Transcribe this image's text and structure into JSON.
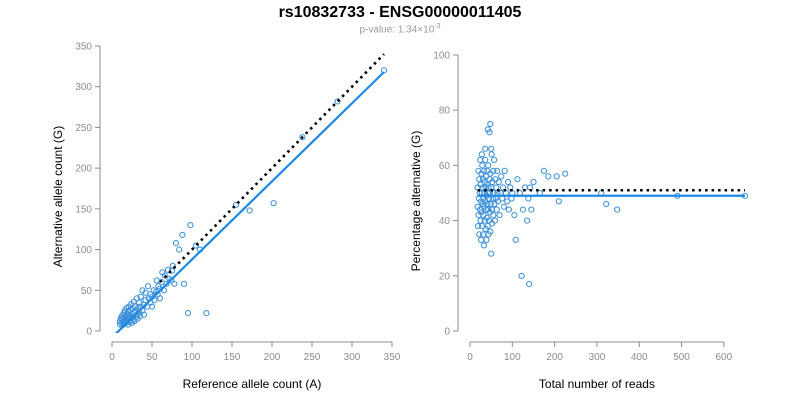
{
  "figure": {
    "title": "rs10832733 - ENSG00000011405",
    "pvalue_prefix": "p-value: 1.34×10",
    "pvalue_exponent": "-3"
  },
  "colors": {
    "points": "#3a8fd8",
    "fit_line": "#1e88e5",
    "reference_line": "#000000",
    "axis": "#8c8c8c"
  },
  "chart_data": [
    {
      "type": "scatter",
      "xlabel": "Reference allele count (A)",
      "ylabel": "Alternative allele count (G)",
      "xlim": [
        0,
        350
      ],
      "ylim": [
        0,
        350
      ],
      "xticks": [
        0,
        50,
        100,
        150,
        200,
        250,
        300,
        350
      ],
      "yticks": [
        0,
        50,
        100,
        150,
        200,
        250,
        300,
        350
      ],
      "points": [
        [
          10,
          8
        ],
        [
          10,
          12
        ],
        [
          11,
          15
        ],
        [
          12,
          10
        ],
        [
          12,
          18
        ],
        [
          13,
          7
        ],
        [
          13,
          14
        ],
        [
          14,
          20
        ],
        [
          14,
          11
        ],
        [
          15,
          9
        ],
        [
          15,
          16
        ],
        [
          15,
          22
        ],
        [
          16,
          13
        ],
        [
          16,
          25
        ],
        [
          17,
          10
        ],
        [
          17,
          18
        ],
        [
          18,
          14
        ],
        [
          18,
          28
        ],
        [
          19,
          12
        ],
        [
          19,
          20
        ],
        [
          20,
          8
        ],
        [
          20,
          17
        ],
        [
          20,
          24
        ],
        [
          21,
          15
        ],
        [
          21,
          30
        ],
        [
          22,
          11
        ],
        [
          22,
          19
        ],
        [
          23,
          13
        ],
        [
          23,
          26
        ],
        [
          24,
          16
        ],
        [
          24,
          33
        ],
        [
          25,
          10
        ],
        [
          25,
          21
        ],
        [
          26,
          18
        ],
        [
          26,
          28
        ],
        [
          27,
          14
        ],
        [
          27,
          36
        ],
        [
          28,
          22
        ],
        [
          28,
          12
        ],
        [
          29,
          30
        ],
        [
          30,
          17
        ],
        [
          30,
          25
        ],
        [
          31,
          40
        ],
        [
          32,
          20
        ],
        [
          32,
          15
        ],
        [
          33,
          28
        ],
        [
          34,
          35
        ],
        [
          34,
          23
        ],
        [
          35,
          18
        ],
        [
          36,
          30
        ],
        [
          36,
          42
        ],
        [
          38,
          25
        ],
        [
          38,
          50
        ],
        [
          40,
          32
        ],
        [
          40,
          20
        ],
        [
          42,
          38
        ],
        [
          42,
          47
        ],
        [
          44,
          30
        ],
        [
          45,
          55
        ],
        [
          46,
          40
        ],
        [
          48,
          35
        ],
        [
          48,
          45
        ],
        [
          50,
          42
        ],
        [
          50,
          30
        ],
        [
          52,
          50
        ],
        [
          53,
          38
        ],
        [
          55,
          48
        ],
        [
          56,
          62
        ],
        [
          57,
          45
        ],
        [
          58,
          55
        ],
        [
          60,
          40
        ],
        [
          60,
          52
        ],
        [
          62,
          60
        ],
        [
          63,
          72
        ],
        [
          65,
          50
        ],
        [
          66,
          68
        ],
        [
          68,
          58
        ],
        [
          70,
          75
        ],
        [
          72,
          64
        ],
        [
          74,
          62
        ],
        [
          75,
          74
        ],
        [
          76,
          80
        ],
        [
          78,
          58
        ],
        [
          80,
          108
        ],
        [
          84,
          100
        ],
        [
          88,
          118
        ],
        [
          90,
          58
        ],
        [
          95,
          22
        ],
        [
          98,
          130
        ],
        [
          105,
          105
        ],
        [
          110,
          100
        ],
        [
          118,
          22
        ],
        [
          155,
          155
        ],
        [
          172,
          148
        ],
        [
          202,
          157
        ],
        [
          238,
          238
        ],
        [
          282,
          282
        ],
        [
          340,
          320
        ]
      ],
      "fit_line": [
        [
          0,
          -8
        ],
        [
          340,
          318
        ]
      ],
      "reference_line": [
        [
          60,
          60
        ],
        [
          340,
          340
        ]
      ]
    },
    {
      "type": "scatter",
      "xlabel": "Total number of reads",
      "ylabel": "Percentage alternative (G)",
      "xlim": [
        0,
        650
      ],
      "ylim": [
        0,
        100
      ],
      "xticks": [
        0,
        100,
        200,
        300,
        400,
        500,
        600
      ],
      "yticks": [
        0,
        20,
        40,
        60,
        80,
        100
      ],
      "points": [
        [
          18,
          45
        ],
        [
          18,
          52
        ],
        [
          19,
          38
        ],
        [
          20,
          58
        ],
        [
          20,
          42
        ],
        [
          21,
          48
        ],
        [
          22,
          35
        ],
        [
          22,
          55
        ],
        [
          23,
          50
        ],
        [
          24,
          44
        ],
        [
          24,
          62
        ],
        [
          25,
          40
        ],
        [
          25,
          53
        ],
        [
          26,
          47
        ],
        [
          26,
          33
        ],
        [
          27,
          57
        ],
        [
          27,
          43
        ],
        [
          28,
          50
        ],
        [
          28,
          38
        ],
        [
          29,
          60
        ],
        [
          30,
          46
        ],
        [
          30,
          52
        ],
        [
          31,
          35
        ],
        [
          31,
          55
        ],
        [
          32,
          42
        ],
        [
          32,
          48
        ],
        [
          33,
          58
        ],
        [
          33,
          31
        ],
        [
          34,
          45
        ],
        [
          34,
          50
        ],
        [
          35,
          40
        ],
        [
          35,
          54
        ],
        [
          36,
          47
        ],
        [
          36,
          62
        ],
        [
          37,
          37
        ],
        [
          37,
          52
        ],
        [
          38,
          44
        ],
        [
          38,
          56
        ],
        [
          39,
          49
        ],
        [
          39,
          33
        ],
        [
          40,
          41
        ],
        [
          40,
          53
        ],
        [
          41,
          58
        ],
        [
          41,
          46
        ],
        [
          42,
          38
        ],
        [
          42,
          50
        ],
        [
          43,
          44
        ],
        [
          43,
          60
        ],
        [
          44,
          35
        ],
        [
          44,
          52
        ],
        [
          45,
          48
        ],
        [
          45,
          40
        ],
        [
          46,
          55
        ],
        [
          46,
          72
        ],
        [
          47,
          43
        ],
        [
          47,
          50
        ],
        [
          48,
          36
        ],
        [
          48,
          57
        ],
        [
          49,
          46
        ],
        [
          50,
          52
        ],
        [
          50,
          28
        ],
        [
          51,
          64
        ],
        [
          52,
          44
        ],
        [
          52,
          39
        ],
        [
          53,
          54
        ],
        [
          54,
          48
        ],
        [
          55,
          42
        ],
        [
          55,
          58
        ],
        [
          56,
          50
        ],
        [
          57,
          62
        ],
        [
          58,
          46
        ],
        [
          59,
          40
        ],
        [
          60,
          55
        ],
        [
          61,
          48
        ],
        [
          62,
          52
        ],
        [
          63,
          44
        ],
        [
          64,
          58
        ],
        [
          65,
          50
        ],
        [
          66,
          47
        ],
        [
          68,
          54
        ],
        [
          70,
          42
        ],
        [
          72,
          50
        ],
        [
          74,
          56
        ],
        [
          76,
          48
        ],
        [
          78,
          52
        ],
        [
          80,
          45
        ],
        [
          82,
          58
        ],
        [
          85,
          50
        ],
        [
          88,
          47
        ],
        [
          90,
          54
        ],
        [
          92,
          44
        ],
        [
          95,
          52
        ],
        [
          98,
          48
        ],
        [
          100,
          50
        ],
        [
          105,
          42
        ],
        [
          108,
          33
        ],
        [
          112,
          55
        ],
        [
          118,
          50
        ],
        [
          122,
          20
        ],
        [
          125,
          44
        ],
        [
          130,
          52
        ],
        [
          135,
          40
        ],
        [
          138,
          48
        ],
        [
          140,
          17
        ],
        [
          142,
          52
        ],
        [
          145,
          44
        ],
        [
          150,
          54
        ],
        [
          165,
          50
        ],
        [
          175,
          58
        ],
        [
          185,
          56
        ],
        [
          205,
          56
        ],
        [
          210,
          47
        ],
        [
          225,
          57
        ],
        [
          310,
          50
        ],
        [
          322,
          46
        ],
        [
          348,
          44
        ],
        [
          490,
          49
        ],
        [
          650,
          49
        ],
        [
          48,
          75
        ],
        [
          50,
          66
        ],
        [
          36,
          66
        ],
        [
          42,
          73
        ],
        [
          28,
          64
        ]
      ],
      "fit_line": [
        [
          18,
          49
        ],
        [
          650,
          49
        ]
      ],
      "reference_line": [
        [
          18,
          51
        ],
        [
          650,
          51
        ]
      ]
    }
  ]
}
